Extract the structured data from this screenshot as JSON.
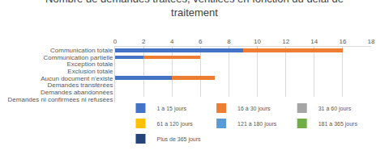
{
  "chart_data": {
    "type": "bar",
    "title": "Nombre de demandes traitées, ventilées en fonction du délai de traitement",
    "orientation": "horizontal",
    "stacked": true,
    "grid": true,
    "legend": "bottom",
    "categories": [
      "Communication totale",
      "Communication partielle",
      "Exception totale",
      "Exclusion totale",
      "Aucun document n'existe",
      "Demandes transférées",
      "Demandes abandonnées",
      "Demandes ni confirmées ni refusées"
    ],
    "series": [
      {
        "name": "1 à 15 jours",
        "color": "#4472c4",
        "values": [
          9,
          2,
          0,
          0,
          4,
          0,
          0,
          0
        ]
      },
      {
        "name": "16 à 30 jours",
        "color": "#ed7d31",
        "values": [
          7,
          4,
          0,
          0,
          3,
          0,
          0,
          0
        ]
      },
      {
        "name": "31 à 60 jours",
        "color": "#a5a5a5",
        "values": [
          0,
          0,
          0,
          0,
          0,
          0,
          0,
          0
        ]
      },
      {
        "name": "61 à 120 jours",
        "color": "#ffc000",
        "values": [
          0,
          0,
          0,
          0,
          0,
          0,
          0,
          0
        ]
      },
      {
        "name": "121 à 180 jours",
        "color": "#5b9bd5",
        "values": [
          0,
          0,
          0,
          0,
          0,
          0,
          0,
          0
        ]
      },
      {
        "name": "181 à 365 jours",
        "color": "#70ad47",
        "values": [
          0,
          0,
          0,
          0,
          0,
          0,
          0,
          0
        ]
      },
      {
        "name": "Plus de 365 jours",
        "color": "#264478",
        "values": [
          0,
          0,
          0,
          0,
          0,
          0,
          0,
          0
        ]
      }
    ],
    "xlim": [
      0,
      18
    ],
    "xticks": [
      0,
      2,
      4,
      6,
      8,
      10,
      12,
      14,
      16,
      18
    ]
  }
}
